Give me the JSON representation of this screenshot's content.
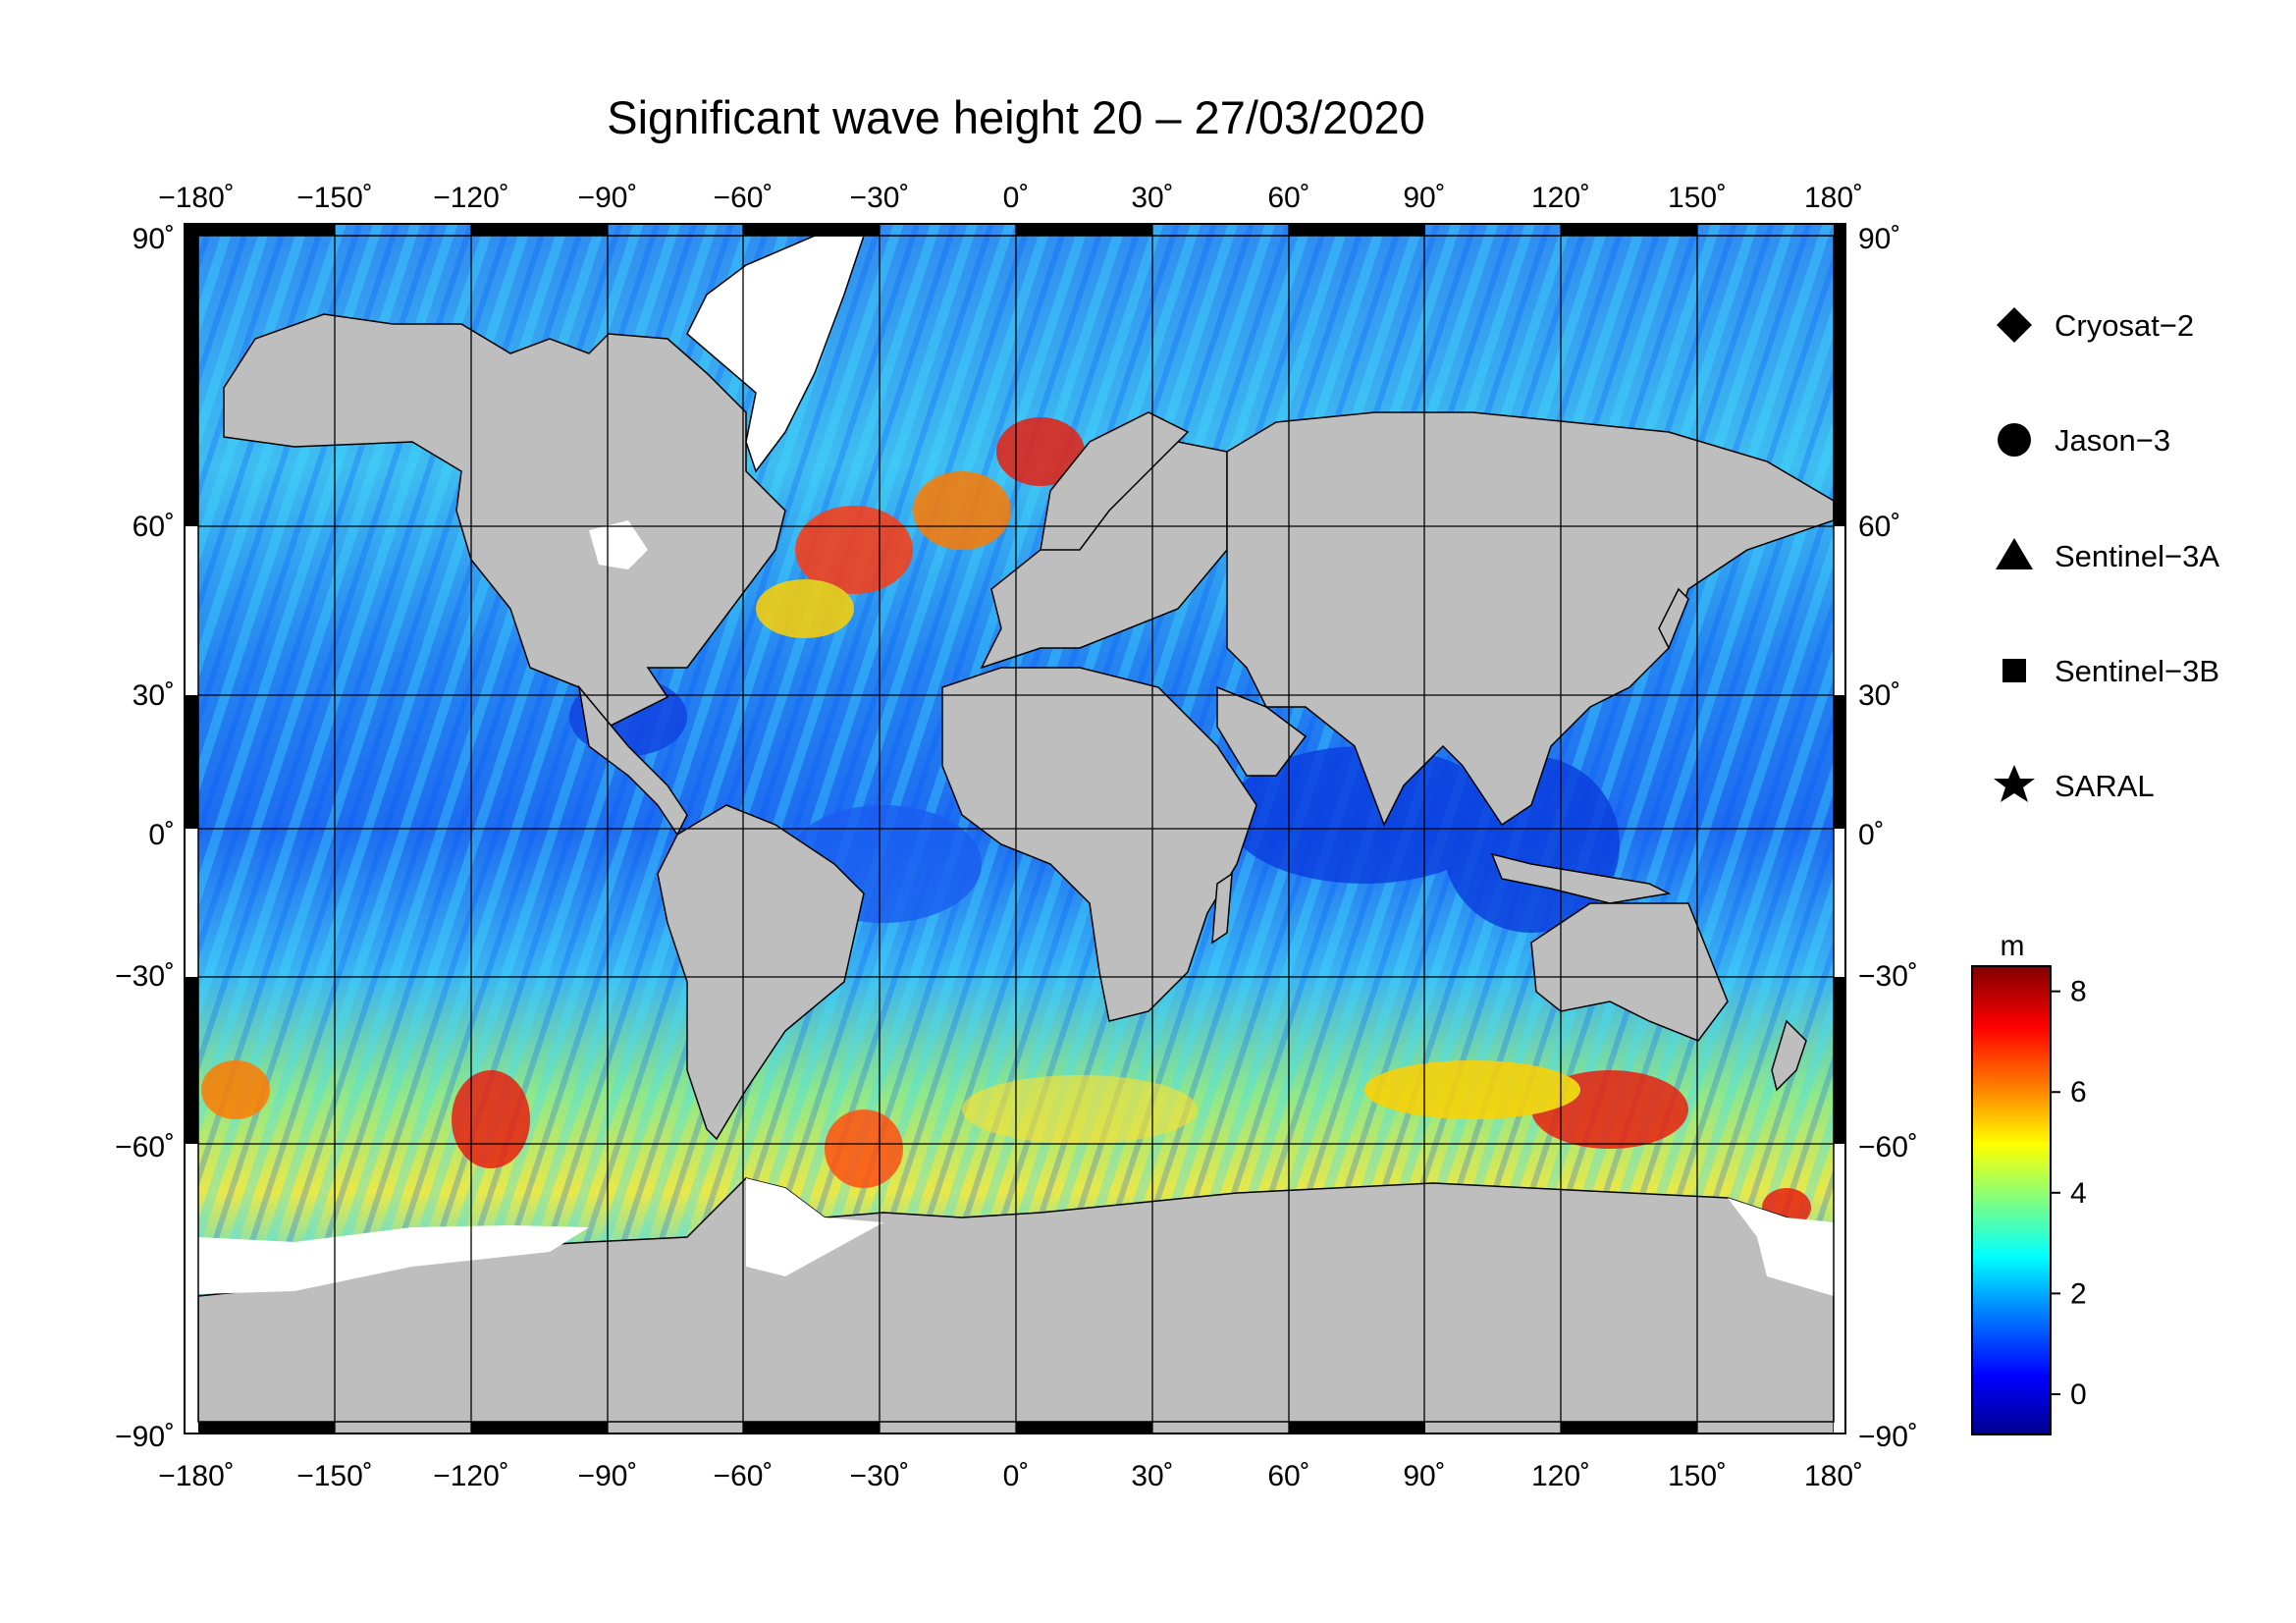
{
  "title": "Significant wave height 20 – 27/03/2020",
  "map": {
    "type": "global_equirectangular",
    "lon_range": [
      -180,
      180
    ],
    "lat_range": [
      -90,
      90
    ],
    "grid_interval_deg": 30,
    "land_color": "#bebebe",
    "ice_color": "#ffffff",
    "lon_tick_labels": [
      "−180˚",
      "−150˚",
      "−120˚",
      "−90˚",
      "−60˚",
      "−30˚",
      "0˚",
      "30˚",
      "60˚",
      "90˚",
      "120˚",
      "150˚",
      "180˚"
    ],
    "lat_tick_labels": [
      "90˚",
      "60˚",
      "30˚",
      "0˚",
      "−30˚",
      "−60˚",
      "−90˚"
    ]
  },
  "legend": {
    "items": [
      {
        "label": "Cryosat−2",
        "icon": "diamond-icon"
      },
      {
        "label": "Jason−3",
        "icon": "circle-icon"
      },
      {
        "label": "Sentinel−3A",
        "icon": "triangle-icon"
      },
      {
        "label": "Sentinel−3B",
        "icon": "square-icon"
      },
      {
        "label": "SARAL",
        "icon": "star-icon"
      }
    ]
  },
  "colorbar": {
    "unit": "m",
    "range": [
      -0.8,
      8.5
    ],
    "ticks": [
      "0",
      "2",
      "4",
      "6",
      "8"
    ],
    "colors": [
      "#00008f",
      "#0000ff",
      "#0080ff",
      "#00ffff",
      "#80ff80",
      "#ffff00",
      "#ff8000",
      "#ff0000",
      "#800000"
    ]
  },
  "chart_data": {
    "type": "heatmap",
    "variable": "significant wave height",
    "unit": "m",
    "period": "20 – 27/03/2020",
    "satellites": [
      "Cryosat−2",
      "Jason−3",
      "Sentinel−3A",
      "Sentinel−3B",
      "SARAL"
    ],
    "value_range": [
      0,
      8.5
    ]
  }
}
